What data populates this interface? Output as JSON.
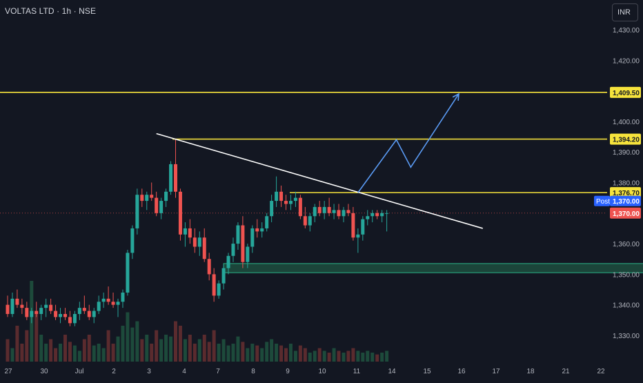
{
  "header": {
    "symbol": "VOLTAS LTD · 1h · NSE"
  },
  "currency_button": {
    "label": "INR"
  },
  "colors": {
    "background": "#131722",
    "up": "#26a69a",
    "down": "#ef5350",
    "level_line": "#f6e33c",
    "trendline": "#ffffff",
    "projection": "#5b9cf6",
    "zone_fill": "#1d4d3e",
    "zone_border": "#2db58a",
    "volume_up": "#1d4a3b",
    "volume_down": "#5a2b2e"
  },
  "chart_data": {
    "type": "candlestick",
    "y_axis": {
      "ticks": [
        "1,430.00",
        "1,420.00",
        "1,410.00",
        "1,400.00",
        "1,390.00",
        "1,380.00",
        "1,360.00",
        "1,350.00",
        "1,340.00",
        "1,330.00"
      ],
      "tick_values": [
        1430,
        1420,
        1410,
        1400,
        1390,
        1380,
        1360,
        1350,
        1340,
        1330
      ],
      "range": [
        1324,
        1435
      ]
    },
    "x_axis": {
      "ticks": [
        "27",
        "30",
        "Jul",
        "2",
        "3",
        "4",
        "7",
        "8",
        "9",
        "10",
        "11",
        "14",
        "15",
        "16",
        "17",
        "18",
        "21",
        "22"
      ]
    },
    "horizontal_levels": [
      {
        "value": 1409.5,
        "label": "1,409.50"
      },
      {
        "value": 1394.2,
        "label": "1,394.20"
      },
      {
        "value": 1376.7,
        "label": "1,376.70"
      }
    ],
    "last_price": {
      "value": 1370.0,
      "label": "1,370.00",
      "session_label": "Post"
    },
    "trendline": {
      "from": {
        "bar": 31,
        "price": 1396.0
      },
      "to": {
        "bar": 99,
        "price": 1365.0
      }
    },
    "demand_zone": {
      "from_bar": 45,
      "to_bar": 134,
      "low": 1350.5,
      "high": 1353.5
    },
    "projection_path": [
      {
        "bar": 73,
        "price": 1376.7
      },
      {
        "bar": 81,
        "price": 1394.0
      },
      {
        "bar": 84,
        "price": 1385.0
      },
      {
        "bar": 94,
        "price": 1409.0
      }
    ],
    "candles": [
      [
        1340,
        1343,
        1336,
        1337
      ],
      [
        1337,
        1344,
        1336,
        1342
      ],
      [
        1342,
        1345,
        1339,
        1340
      ],
      [
        1340,
        1342,
        1337,
        1339
      ],
      [
        1339,
        1341,
        1335,
        1336
      ],
      [
        1336,
        1339,
        1334,
        1338
      ],
      [
        1338,
        1341,
        1336,
        1337
      ],
      [
        1337,
        1340,
        1335,
        1339
      ],
      [
        1339,
        1342,
        1336,
        1340
      ],
      [
        1340,
        1342,
        1337,
        1338
      ],
      [
        1338,
        1340,
        1335,
        1336
      ],
      [
        1336,
        1339,
        1334,
        1337
      ],
      [
        1337,
        1339,
        1335,
        1336
      ],
      [
        1336,
        1338,
        1333,
        1334
      ],
      [
        1334,
        1338,
        1333,
        1337
      ],
      [
        1337,
        1341,
        1335,
        1339
      ],
      [
        1339,
        1343,
        1337,
        1338
      ],
      [
        1338,
        1340,
        1335,
        1336
      ],
      [
        1336,
        1339,
        1334,
        1338
      ],
      [
        1338,
        1343,
        1337,
        1341
      ],
      [
        1341,
        1344,
        1339,
        1342
      ],
      [
        1342,
        1346,
        1340,
        1341
      ],
      [
        1341,
        1344,
        1339,
        1340
      ],
      [
        1340,
        1342,
        1336,
        1341
      ],
      [
        1341,
        1345,
        1339,
        1344
      ],
      [
        1344,
        1358,
        1343,
        1357
      ],
      [
        1357,
        1366,
        1355,
        1365
      ],
      [
        1365,
        1378,
        1363,
        1376
      ],
      [
        1376,
        1378,
        1372,
        1374
      ],
      [
        1374,
        1377,
        1371,
        1376
      ],
      [
        1376,
        1380,
        1374,
        1375
      ],
      [
        1375,
        1377,
        1369,
        1370
      ],
      [
        1370,
        1375,
        1368,
        1374
      ],
      [
        1374,
        1378,
        1372,
        1377
      ],
      [
        1377,
        1387,
        1376,
        1386
      ],
      [
        1386,
        1394,
        1375,
        1377
      ],
      [
        1377,
        1378,
        1361,
        1363
      ],
      [
        1363,
        1367,
        1359,
        1365
      ],
      [
        1365,
        1368,
        1360,
        1362
      ],
      [
        1362,
        1365,
        1357,
        1359
      ],
      [
        1359,
        1364,
        1356,
        1362
      ],
      [
        1362,
        1365,
        1354,
        1355
      ],
      [
        1355,
        1357,
        1348,
        1350
      ],
      [
        1350,
        1352,
        1341,
        1343
      ],
      [
        1343,
        1348,
        1342,
        1347
      ],
      [
        1347,
        1353,
        1345,
        1352
      ],
      [
        1352,
        1357,
        1350,
        1356
      ],
      [
        1356,
        1362,
        1354,
        1360
      ],
      [
        1360,
        1367,
        1358,
        1366
      ],
      [
        1366,
        1369,
        1352,
        1354
      ],
      [
        1354,
        1360,
        1352,
        1359
      ],
      [
        1359,
        1366,
        1357,
        1365
      ],
      [
        1365,
        1368,
        1362,
        1364
      ],
      [
        1364,
        1367,
        1362,
        1365
      ],
      [
        1365,
        1370,
        1364,
        1369
      ],
      [
        1369,
        1376,
        1367,
        1374
      ],
      [
        1374,
        1382,
        1372,
        1377
      ],
      [
        1377,
        1379,
        1372,
        1374
      ],
      [
        1374,
        1376,
        1371,
        1373
      ],
      [
        1373,
        1376,
        1371,
        1374
      ],
      [
        1374,
        1377,
        1372,
        1375
      ],
      [
        1375,
        1376,
        1368,
        1369
      ],
      [
        1369,
        1372,
        1365,
        1366
      ],
      [
        1366,
        1370,
        1364,
        1369
      ],
      [
        1369,
        1373,
        1367,
        1372
      ],
      [
        1372,
        1374,
        1369,
        1370
      ],
      [
        1370,
        1374,
        1368,
        1372
      ],
      [
        1372,
        1375,
        1369,
        1370
      ],
      [
        1370,
        1373,
        1368,
        1371
      ],
      [
        1371,
        1373,
        1368,
        1369
      ],
      [
        1369,
        1372,
        1367,
        1371
      ],
      [
        1371,
        1373,
        1369,
        1370
      ],
      [
        1370,
        1372,
        1361,
        1362
      ],
      [
        1362,
        1365,
        1357,
        1363
      ],
      [
        1363,
        1369,
        1361,
        1368
      ],
      [
        1368,
        1371,
        1366,
        1369
      ],
      [
        1369,
        1371,
        1367,
        1370
      ],
      [
        1370,
        1371,
        1368,
        1369
      ],
      [
        1369,
        1371,
        1367,
        1370
      ],
      [
        1370,
        1371,
        1364,
        1370
      ]
    ],
    "volume_relative": [
      0.25,
      0.15,
      0.4,
      0.2,
      0.35,
      0.9,
      0.55,
      0.3,
      0.2,
      0.25,
      0.15,
      0.2,
      0.3,
      0.22,
      0.18,
      0.12,
      0.25,
      0.3,
      0.18,
      0.2,
      0.15,
      0.35,
      0.2,
      0.28,
      0.4,
      0.55,
      0.38,
      0.45,
      0.25,
      0.3,
      0.2,
      0.35,
      0.25,
      0.3,
      0.28,
      0.45,
      0.4,
      0.25,
      0.3,
      0.2,
      0.25,
      0.3,
      0.22,
      0.35,
      0.2,
      0.25,
      0.18,
      0.2,
      0.28,
      0.22,
      0.15,
      0.2,
      0.18,
      0.15,
      0.22,
      0.25,
      0.2,
      0.18,
      0.15,
      0.2,
      0.12,
      0.18,
      0.15,
      0.1,
      0.12,
      0.15,
      0.12,
      0.1,
      0.15,
      0.12,
      0.1,
      0.12,
      0.15,
      0.12,
      0.1,
      0.12,
      0.1,
      0.08,
      0.1,
      0.12
    ]
  }
}
